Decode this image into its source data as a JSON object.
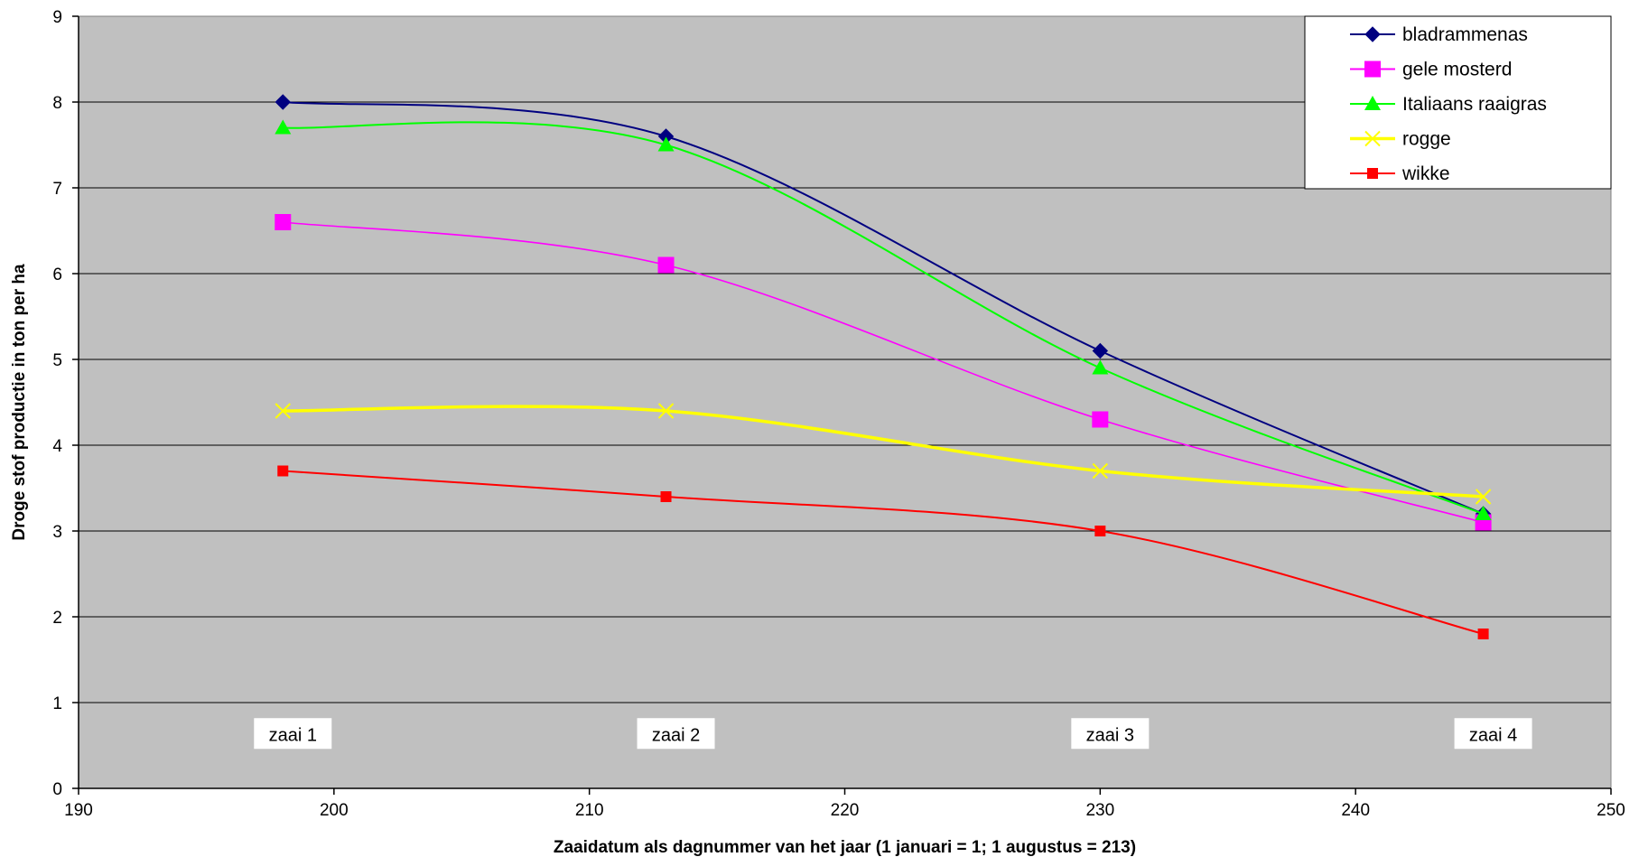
{
  "chart_data": {
    "type": "line",
    "title": "",
    "xlabel": "Zaaidatum als dagnummer van het jaar (1 januari = 1; 1 augustus = 213)",
    "ylabel": "Droge stof productie in ton per ha",
    "xlim": [
      190,
      250
    ],
    "ylim": [
      0,
      9
    ],
    "x_ticks": [
      190,
      200,
      210,
      220,
      230,
      240,
      250
    ],
    "y_ticks": [
      0,
      1,
      2,
      3,
      4,
      5,
      6,
      7,
      8,
      9
    ],
    "grid": "horizontal",
    "legend_position": "top-right",
    "plot_background": "#c0c0c0",
    "series": [
      {
        "name": "bladrammenas",
        "color": "#000080",
        "marker": "diamond",
        "x": [
          198,
          213,
          230,
          245
        ],
        "y": [
          8.0,
          7.6,
          5.1,
          3.2
        ]
      },
      {
        "name": "gele mosterd",
        "color": "#ff00ff",
        "marker": "square",
        "x": [
          198,
          213,
          230,
          245
        ],
        "y": [
          6.6,
          6.1,
          4.3,
          3.1
        ]
      },
      {
        "name": "Italiaans raaigras",
        "color": "#00ff00",
        "marker": "triangle",
        "x": [
          198,
          213,
          230,
          245
        ],
        "y": [
          7.7,
          7.5,
          4.9,
          3.2
        ]
      },
      {
        "name": "rogge",
        "color": "#ffff00",
        "marker": "x",
        "x": [
          198,
          213,
          230,
          245
        ],
        "y": [
          4.4,
          4.4,
          3.7,
          3.4
        ]
      },
      {
        "name": "wikke",
        "color": "#ff0000",
        "marker": "small-square",
        "x": [
          198,
          213,
          230,
          245
        ],
        "y": [
          3.7,
          3.4,
          3.0,
          1.8
        ]
      }
    ],
    "annotations": [
      {
        "text": "zaai 1",
        "x": 198,
        "y": 0.65
      },
      {
        "text": "zaai 2",
        "x": 213,
        "y": 0.65
      },
      {
        "text": "zaai 3",
        "x": 230,
        "y": 0.65
      },
      {
        "text": "zaai 4",
        "x": 245,
        "y": 0.65
      }
    ]
  }
}
